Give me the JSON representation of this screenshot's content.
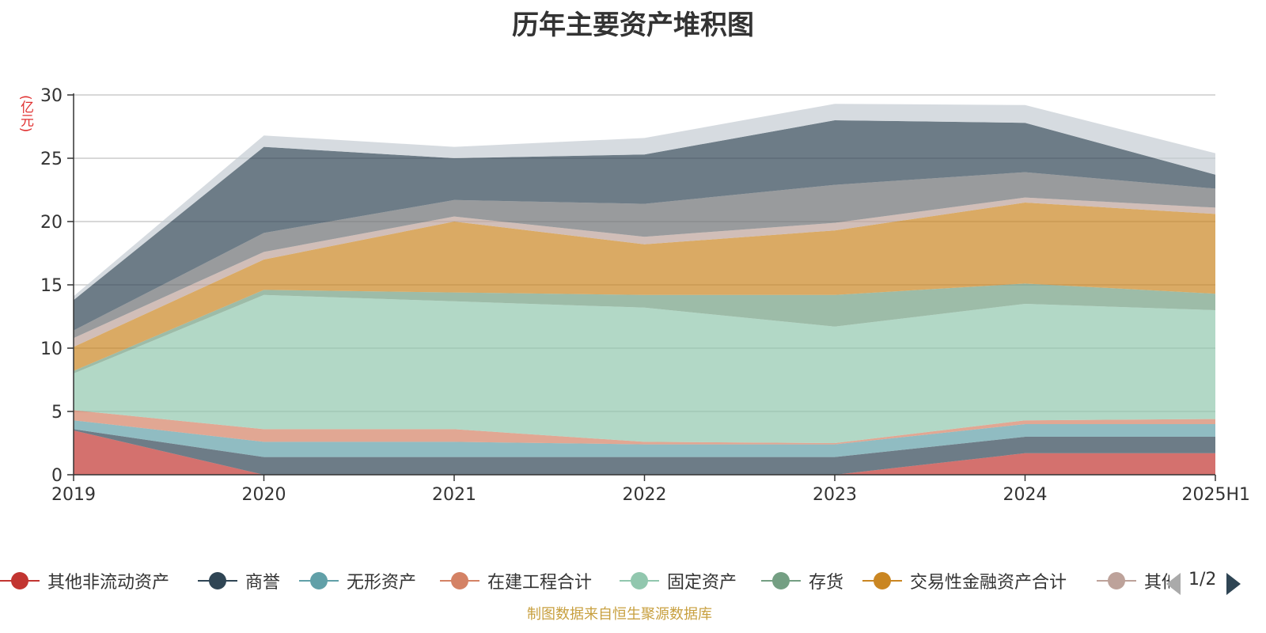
{
  "chart_data": {
    "type": "area",
    "stacked": true,
    "title": "历年主要资产堆积图",
    "ylabel": "(亿元)",
    "ylim": [
      0,
      30
    ],
    "yticks": [
      0,
      5,
      10,
      15,
      20,
      25,
      30
    ],
    "categories": [
      "2019",
      "2020",
      "2021",
      "2022",
      "2023",
      "2024",
      "2025H1"
    ],
    "grid": true,
    "legend_position": "bottom",
    "series": [
      {
        "name": "其他非流动资产",
        "color": "#c23531",
        "values": [
          3.5,
          0,
          0,
          0,
          0,
          1.7,
          1.7
        ]
      },
      {
        "name": "商誉",
        "color": "#2f4554",
        "values": [
          0.1,
          1.4,
          1.4,
          1.4,
          1.4,
          1.3,
          1.3
        ]
      },
      {
        "name": "无形资产",
        "color": "#61a0a8",
        "values": [
          0.7,
          1.2,
          1.2,
          1.0,
          1.0,
          1.0,
          1.0
        ]
      },
      {
        "name": "在建工程合计",
        "color": "#d48265",
        "values": [
          0.8,
          1.0,
          1.0,
          0.2,
          0.1,
          0.3,
          0.4
        ]
      },
      {
        "name": "固定资产",
        "color": "#91c7ae",
        "values": [
          2.9,
          10.6,
          10.1,
          10.6,
          9.2,
          9.2,
          8.6
        ]
      },
      {
        "name": "存货",
        "color": "#749f83",
        "values": [
          0.2,
          0.4,
          0.7,
          1.0,
          2.5,
          1.6,
          1.3
        ]
      },
      {
        "name": "交易性金融资产合计",
        "color": "#ca8622",
        "values": [
          1.9,
          2.4,
          5.6,
          4.0,
          5.1,
          6.4,
          6.3
        ]
      },
      {
        "name": "其他",
        "color": "#bda29a",
        "values": [
          0.7,
          0.6,
          0.4,
          0.6,
          0.6,
          0.4,
          0.5
        ]
      },
      {
        "name": "",
        "color": "#6e7074",
        "values": [
          0.6,
          1.5,
          1.3,
          2.6,
          3.0,
          2.0,
          1.5
        ]
      },
      {
        "name": "",
        "color": "#2f4554",
        "values": [
          2.4,
          6.8,
          3.3,
          3.9,
          5.1,
          3.9,
          1.1
        ]
      },
      {
        "name": "",
        "color": "#c4ccd3",
        "values": [
          0.3,
          0.9,
          0.9,
          1.3,
          1.3,
          1.4,
          1.7
        ]
      }
    ]
  },
  "legend": {
    "items": [
      {
        "name": "其他非流动资产",
        "color": "#c23531"
      },
      {
        "name": "商誉",
        "color": "#2f4554"
      },
      {
        "name": "无形资产",
        "color": "#61a0a8"
      },
      {
        "name": "在建工程合计",
        "color": "#d48265"
      },
      {
        "name": "固定资产",
        "color": "#91c7ae"
      },
      {
        "name": "存货",
        "color": "#749f83"
      },
      {
        "name": "交易性金融资产合计",
        "color": "#ca8622"
      },
      {
        "name": "其他",
        "color": "#bda29a"
      }
    ],
    "page": "1/2"
  },
  "source": "制图数据来自恒生聚源数据库"
}
